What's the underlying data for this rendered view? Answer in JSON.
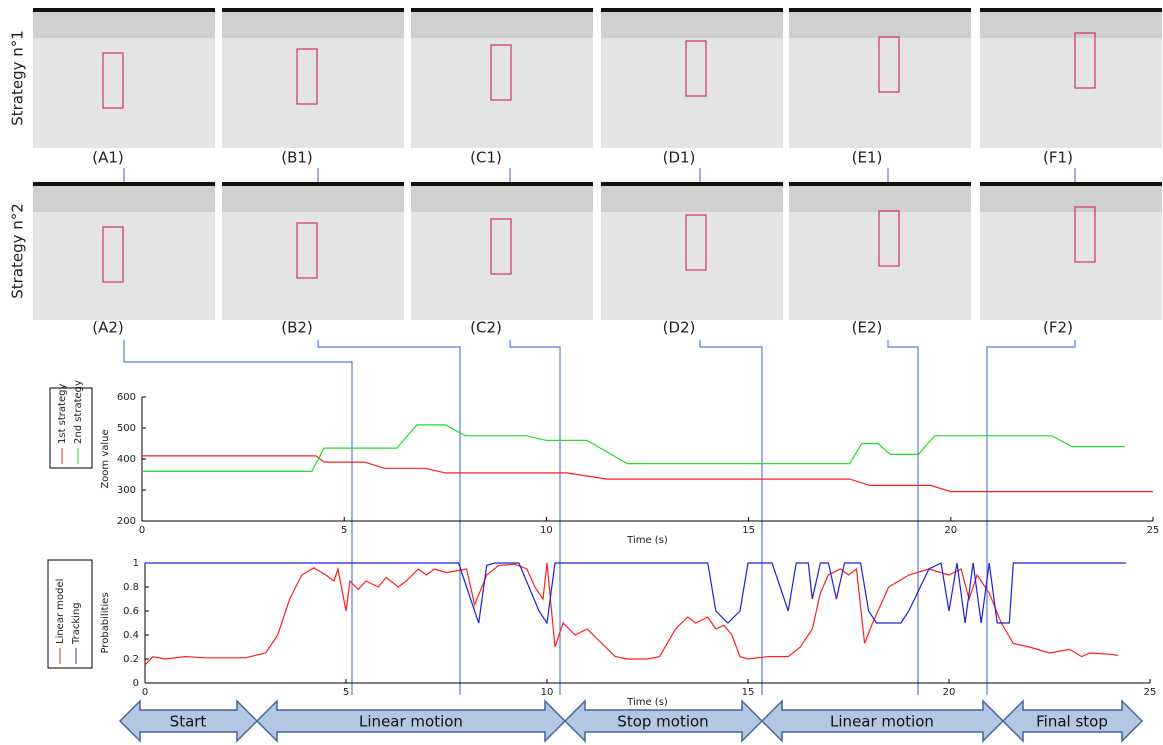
{
  "rows": [
    {
      "label": "Strategy n°1",
      "panels": [
        "(A1)",
        "(B1)",
        "(C1)",
        "(D1)",
        "(E1)",
        "(F1)"
      ]
    },
    {
      "label": "Strategy n°2",
      "panels": [
        "(A2)",
        "(B2)",
        "(C2)",
        "(D2)",
        "(E2)",
        "(F2)"
      ]
    }
  ],
  "phases": [
    "Start",
    "Linear motion",
    "Stop motion",
    "Linear motion",
    "Final stop"
  ],
  "chart_data": [
    {
      "type": "line",
      "y_label": "Zoom value",
      "x_label": "Time (s)",
      "xlim": [
        0,
        25
      ],
      "ylim": [
        200,
        600
      ],
      "xticks": [
        0,
        5,
        10,
        15,
        20,
        25
      ],
      "yticks": [
        200,
        300,
        400,
        500,
        600
      ],
      "series": [
        {
          "name": "1st strategy",
          "color": "#ff2020",
          "x": [
            0,
            4.3,
            4.5,
            5.5,
            6,
            7,
            7.5,
            10.5,
            11.5,
            17.5,
            18,
            19.5,
            20,
            25
          ],
          "values": [
            410,
            410,
            390,
            390,
            370,
            370,
            355,
            355,
            335,
            335,
            315,
            315,
            295,
            295
          ]
        },
        {
          "name": "2nd strategy",
          "color": "#20e020",
          "x": [
            0,
            4.2,
            4.5,
            6.3,
            6.8,
            7.5,
            8,
            9.5,
            10,
            11,
            12,
            17.5,
            17.8,
            18.2,
            18.5,
            19.2,
            19.6,
            22.5,
            23,
            24.3
          ],
          "values": [
            360,
            360,
            435,
            435,
            510,
            510,
            475,
            475,
            460,
            460,
            385,
            385,
            450,
            450,
            415,
            415,
            475,
            475,
            440,
            440
          ]
        }
      ]
    },
    {
      "type": "line",
      "y_label": "Probabilities",
      "x_label": "Time (s)",
      "xlim": [
        0,
        25
      ],
      "ylim": [
        0,
        1
      ],
      "xticks": [
        0,
        5,
        10,
        15,
        20,
        25
      ],
      "yticks": [
        0,
        0.2,
        0.4,
        0.6,
        0.8,
        1
      ],
      "series": [
        {
          "name": "Linear model",
          "color": "#ff2020",
          "x": [
            0,
            0.2,
            0.5,
            1,
            1.5,
            2,
            2.5,
            3,
            3.3,
            3.6,
            3.9,
            4.2,
            4.5,
            4.7,
            4.8,
            5,
            5.1,
            5.3,
            5.5,
            5.8,
            6,
            6.3,
            6.5,
            6.8,
            7,
            7.2,
            7.5,
            8,
            8.2,
            8.5,
            8.8,
            9.2,
            9.5,
            9.7,
            9.9,
            10,
            10.2,
            10.4,
            10.7,
            11,
            11.3,
            11.7,
            12,
            12.5,
            12.8,
            13.2,
            13.5,
            13.7,
            14,
            14.2,
            14.4,
            14.6,
            14.8,
            15,
            15.5,
            16,
            16.3,
            16.6,
            16.8,
            17,
            17.3,
            17.5,
            17.7,
            17.9,
            18.1,
            18.5,
            19,
            19.5,
            20,
            20.3,
            20.5,
            20.7,
            21,
            21.3,
            21.6,
            22,
            22.5,
            23,
            23.3,
            23.5,
            24,
            24.2
          ],
          "values": [
            0.15,
            0.22,
            0.2,
            0.22,
            0.21,
            0.21,
            0.21,
            0.25,
            0.4,
            0.7,
            0.9,
            0.96,
            0.9,
            0.85,
            0.95,
            0.6,
            0.85,
            0.78,
            0.85,
            0.8,
            0.88,
            0.8,
            0.85,
            0.95,
            0.9,
            0.95,
            0.92,
            0.95,
            0.65,
            0.9,
            0.98,
            0.99,
            0.95,
            0.8,
            0.7,
            1,
            0.3,
            0.5,
            0.4,
            0.45,
            0.35,
            0.22,
            0.2,
            0.2,
            0.22,
            0.45,
            0.55,
            0.5,
            0.55,
            0.45,
            0.48,
            0.4,
            0.22,
            0.2,
            0.22,
            0.22,
            0.3,
            0.45,
            0.75,
            0.9,
            0.95,
            0.9,
            0.95,
            0.33,
            0.5,
            0.8,
            0.9,
            0.95,
            0.9,
            0.95,
            0.7,
            0.9,
            0.75,
            0.5,
            0.33,
            0.3,
            0.25,
            0.28,
            0.22,
            0.25,
            0.24,
            0.23
          ]
        },
        {
          "name": "Tracking",
          "color": "#2020e0",
          "x": [
            0,
            7.8,
            8.1,
            8.3,
            8.5,
            8.7,
            9.3,
            9.8,
            10,
            10.2,
            14,
            14.2,
            14.5,
            14.8,
            15,
            15.6,
            16,
            16.2,
            16.5,
            16.6,
            16.8,
            17,
            17.2,
            17.4,
            17.8,
            18,
            18.2,
            18.8,
            19,
            19.5,
            19.8,
            20,
            20.2,
            20.4,
            20.6,
            20.8,
            21,
            21.2,
            21.5,
            21.6,
            24.4
          ],
          "values": [
            1,
            1,
            0.7,
            0.5,
            0.98,
            1,
            1,
            0.6,
            0.5,
            1,
            1,
            0.6,
            0.5,
            0.6,
            1,
            1,
            0.6,
            1,
            1,
            0.7,
            1,
            1,
            0.7,
            1,
            1,
            0.6,
            0.5,
            0.5,
            0.6,
            0.95,
            1,
            0.6,
            1,
            0.5,
            1,
            0.5,
            1,
            0.5,
            0.5,
            1,
            1
          ]
        }
      ]
    }
  ]
}
